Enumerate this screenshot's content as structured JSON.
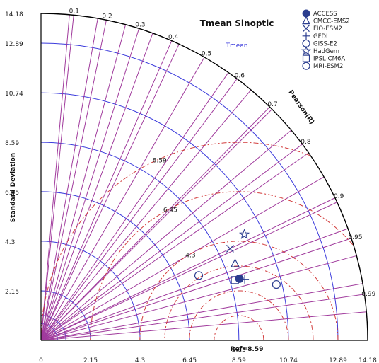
{
  "chart_data": {
    "type": "taylor",
    "title": "Tmean Sinoptic",
    "subtitle": "Tmean",
    "ylabel": "Standard Deviation",
    "xlabel": "Ref=8.59",
    "correlation_label": "Pearson(R)",
    "sd_max": 14.18,
    "reference_sd": 8.59,
    "sd_ticks_x": [
      "0",
      "2.15",
      "4.3",
      "6.45",
      "8.59",
      "10.74",
      "12.89",
      "14.18"
    ],
    "sd_ticks_y": [
      "2.15",
      "4.3",
      "6.45",
      "8.59",
      "10.74",
      "12.89",
      "14.18"
    ],
    "corr_ticks": [
      "0.1",
      "0.2",
      "0.3",
      "0.4",
      "0.5",
      "0.6",
      "0.7",
      "0.8",
      "0.9",
      "0.95",
      "0.99"
    ],
    "rms_labels": [
      "2.15",
      "4.3",
      "6.45",
      "8.59"
    ],
    "models": [
      {
        "name": "ACCESS",
        "marker": "filled-circle",
        "sd": 9.02,
        "r": 0.955
      },
      {
        "name": "CMCC-EMS2",
        "marker": "triangle",
        "sd": 9.06,
        "r": 0.93
      },
      {
        "name": "FIO-ESM2",
        "marker": "x",
        "sd": 9.12,
        "r": 0.9
      },
      {
        "name": "GFDL",
        "marker": "plus",
        "sd": 9.23,
        "r": 0.958
      },
      {
        "name": "GISS-E2",
        "marker": "circle",
        "sd": 7.4,
        "r": 0.925
      },
      {
        "name": "HadGem",
        "marker": "star",
        "sd": 9.95,
        "r": 0.887
      },
      {
        "name": "IPSL-CM6A",
        "marker": "square",
        "sd": 8.81,
        "r": 0.955
      },
      {
        "name": "MRI-ESM2",
        "marker": "circle",
        "sd": 10.5,
        "r": 0.973
      }
    ]
  },
  "colors": {
    "sd_arcs": "#3b3bdc",
    "corr_lines": "#a03a9c",
    "rms_arcs": "#d23c3c",
    "markers": "#2b3d8f",
    "axis": "#000000"
  }
}
